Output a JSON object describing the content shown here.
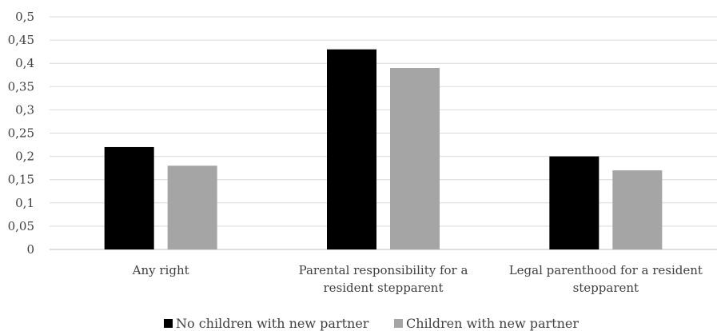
{
  "chart_data": {
    "type": "bar",
    "categories": [
      [
        "Any right"
      ],
      [
        "Parental responsibility for a",
        "resident stepparent"
      ],
      [
        "Legal parenthood for a resident",
        "stepparent"
      ]
    ],
    "series": [
      {
        "name": "No children with new partner",
        "values": [
          0.22,
          0.43,
          0.2
        ],
        "color": "#000000"
      },
      {
        "name": "Children with new partner",
        "values": [
          0.18,
          0.39,
          0.17
        ],
        "color": "#a5a5a5"
      }
    ],
    "yticks": [
      "0",
      "0,05",
      "0,1",
      "0,15",
      "0,2",
      "0,25",
      "0,3",
      "0,35",
      "0,4",
      "0,45",
      "0,5"
    ],
    "ylim": [
      0,
      0.5
    ],
    "grid": true,
    "legend_position": "bottom",
    "title": "",
    "xlabel": "",
    "ylabel": ""
  }
}
